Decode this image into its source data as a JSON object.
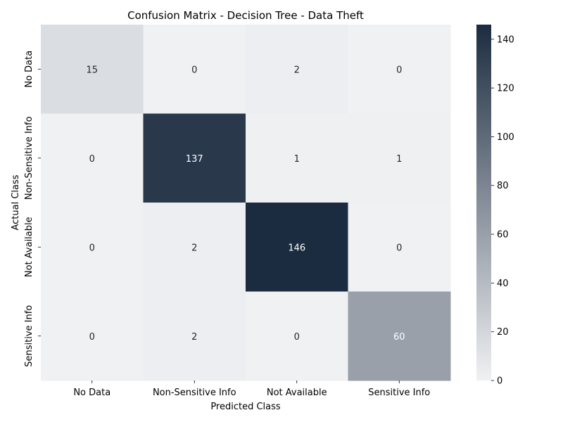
{
  "chart_data": {
    "type": "heatmap",
    "title": "Confusion Matrix - Decision Tree - Data Theft",
    "xlabel": "Predicted Class",
    "ylabel": "Actual Class",
    "x_categories": [
      "No Data",
      "Non-Sensitive Info",
      "Not Available",
      "Sensitive Info"
    ],
    "y_categories": [
      "No Data",
      "Non-Sensitive Info",
      "Not Available",
      "Sensitive Info"
    ],
    "values": [
      [
        15,
        0,
        2,
        0
      ],
      [
        0,
        137,
        1,
        1
      ],
      [
        0,
        2,
        146,
        0
      ],
      [
        0,
        2,
        0,
        60
      ]
    ],
    "colorbar": {
      "range": [
        0,
        146
      ],
      "ticks": [
        "0",
        "20",
        "40",
        "60",
        "80",
        "100",
        "120",
        "140"
      ],
      "color_low": "#f0f1f3",
      "color_high": "#1c2c40"
    },
    "grid": false,
    "legend": "right"
  }
}
